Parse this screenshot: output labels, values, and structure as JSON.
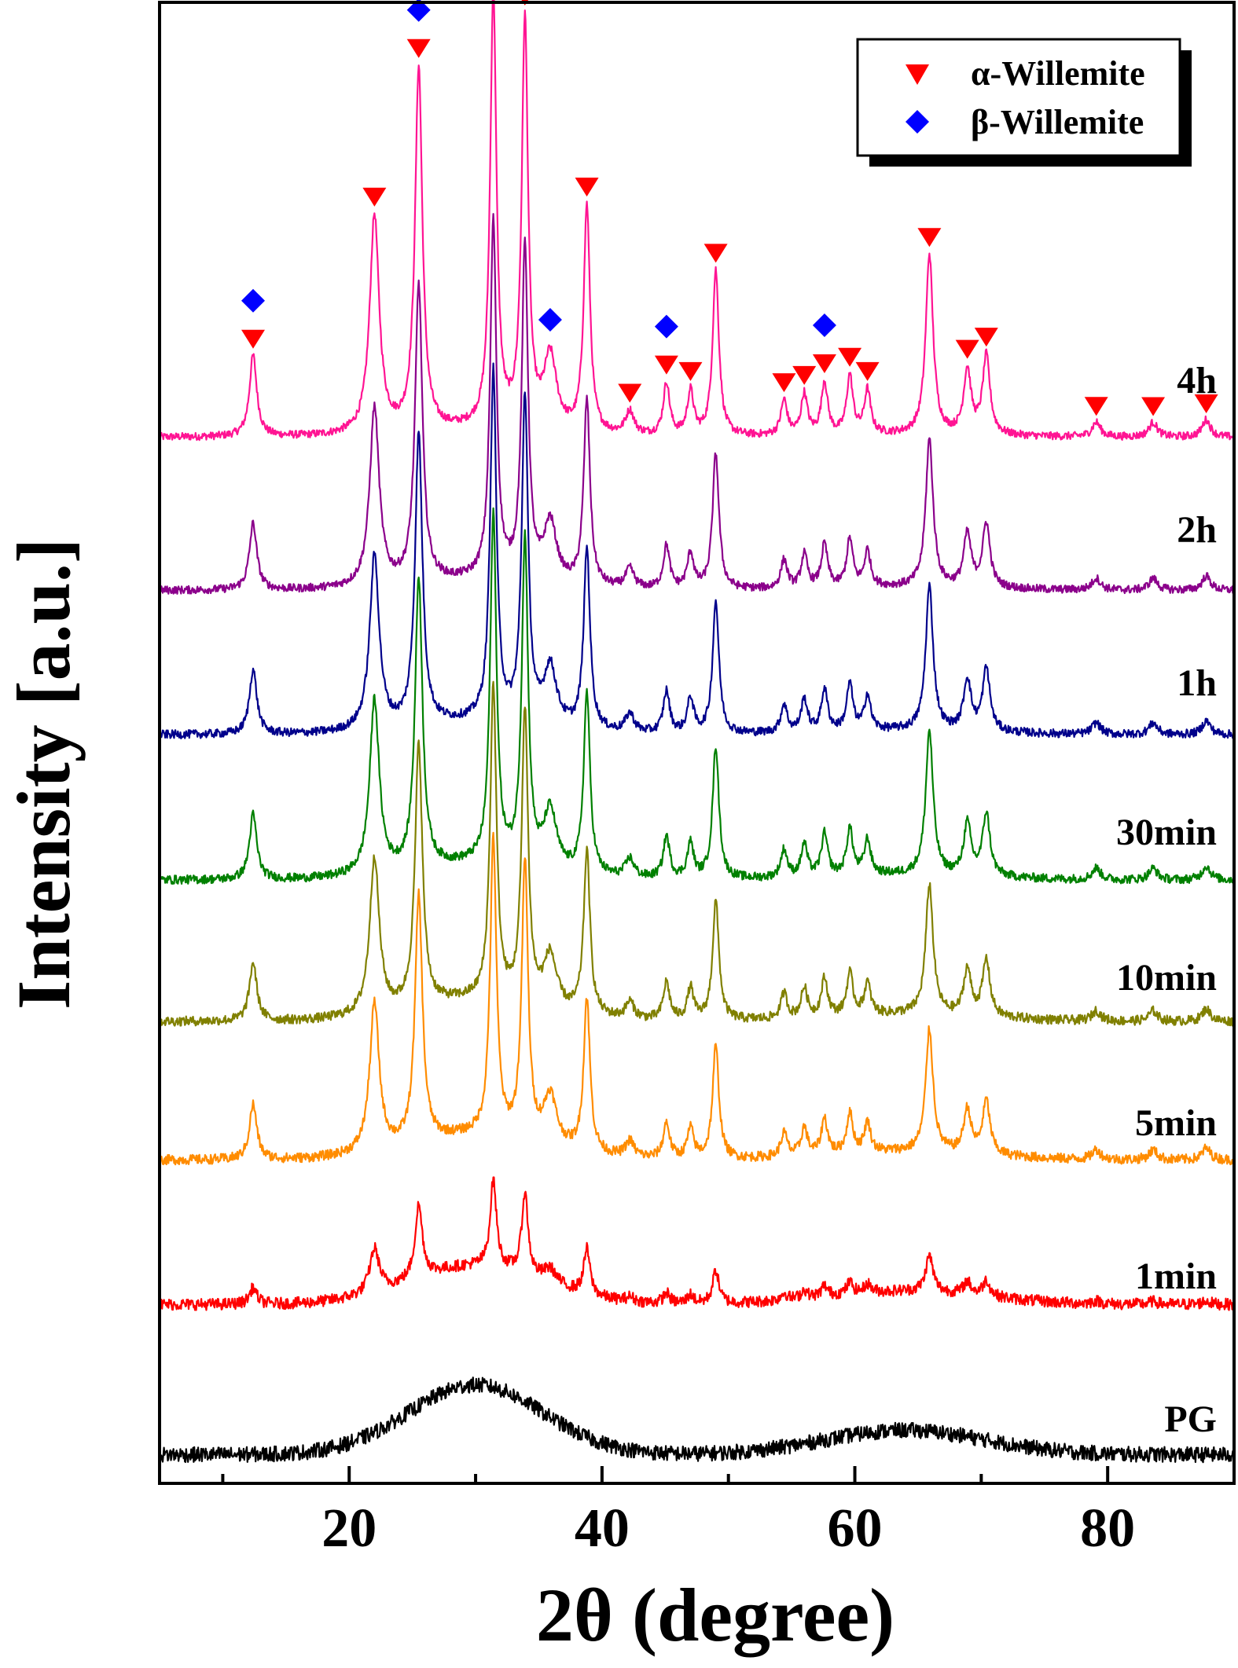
{
  "chart_data": {
    "type": "line",
    "xlabel": "2θ (degree)",
    "ylabel": "Intensity [a.u.]",
    "xlim": [
      5,
      90
    ],
    "x_ticks": [
      20,
      40,
      60,
      80
    ],
    "y_ticks": [],
    "grid": false,
    "legend_position": "top-right",
    "legend": [
      {
        "label": "α-Willemite",
        "marker": "down-triangle",
        "color": "#ff0000"
      },
      {
        "label": "β-Willemite",
        "marker": "diamond",
        "color": "#0000ff"
      }
    ],
    "series": [
      {
        "name": "4h",
        "color": "#ff1493",
        "baseline": 0.09,
        "crystallinity": 1.0,
        "amorphous": 0.02
      },
      {
        "name": "2h",
        "color": "#8b008b",
        "baseline": 0.09,
        "crystallinity": 0.82,
        "amorphous": 0.03
      },
      {
        "name": "1h",
        "color": "#00008b",
        "baseline": 0.08,
        "crystallinity": 0.8,
        "amorphous": 0.04
      },
      {
        "name": "30min",
        "color": "#008000",
        "baseline": 0.08,
        "crystallinity": 0.8,
        "amorphous": 0.05
      },
      {
        "name": "10min",
        "color": "#808000",
        "baseline": 0.08,
        "crystallinity": 0.72,
        "amorphous": 0.07
      },
      {
        "name": "5min",
        "color": "#ff8c00",
        "baseline": 0.09,
        "crystallinity": 0.68,
        "amorphous": 0.08
      },
      {
        "name": "1min",
        "color": "#ff0000",
        "baseline": 0.08,
        "crystallinity": 0.2,
        "amorphous": 0.13
      },
      {
        "name": "PG",
        "color": "#000000",
        "baseline": 0.05,
        "crystallinity": 0.0,
        "amorphous": 0.24
      }
    ],
    "peaks": [
      {
        "x": 12.4,
        "h": 0.28,
        "w": 0.35,
        "phase": "alpha+beta"
      },
      {
        "x": 22.0,
        "h": 0.75,
        "w": 0.45,
        "phase": "alpha"
      },
      {
        "x": 25.5,
        "h": 1.25,
        "w": 0.35,
        "phase": "alpha+beta"
      },
      {
        "x": 31.4,
        "h": 1.5,
        "w": 0.3,
        "phase": "alpha"
      },
      {
        "x": 33.9,
        "h": 1.4,
        "w": 0.3,
        "phase": "alpha"
      },
      {
        "x": 35.9,
        "h": 0.25,
        "w": 0.6,
        "phase": "beta"
      },
      {
        "x": 38.8,
        "h": 0.78,
        "w": 0.3,
        "phase": "alpha"
      },
      {
        "x": 42.2,
        "h": 0.08,
        "w": 0.4,
        "phase": "alpha"
      },
      {
        "x": 45.1,
        "h": 0.18,
        "w": 0.3,
        "phase": "alpha+beta"
      },
      {
        "x": 47.0,
        "h": 0.15,
        "w": 0.3,
        "phase": "alpha"
      },
      {
        "x": 49.0,
        "h": 0.57,
        "w": 0.3,
        "phase": "alpha"
      },
      {
        "x": 54.4,
        "h": 0.12,
        "w": 0.3,
        "phase": "alpha"
      },
      {
        "x": 56.0,
        "h": 0.14,
        "w": 0.3,
        "phase": "alpha"
      },
      {
        "x": 57.6,
        "h": 0.18,
        "w": 0.3,
        "phase": "alpha+beta"
      },
      {
        "x": 59.6,
        "h": 0.2,
        "w": 0.3,
        "phase": "alpha"
      },
      {
        "x": 61.0,
        "h": 0.15,
        "w": 0.3,
        "phase": "alpha"
      },
      {
        "x": 65.9,
        "h": 0.62,
        "w": 0.35,
        "phase": "alpha"
      },
      {
        "x": 68.9,
        "h": 0.22,
        "w": 0.35,
        "phase": "alpha"
      },
      {
        "x": 70.4,
        "h": 0.27,
        "w": 0.35,
        "phase": "alpha"
      },
      {
        "x": 79.1,
        "h": 0.05,
        "w": 0.4,
        "phase": "alpha"
      },
      {
        "x": 83.6,
        "h": 0.05,
        "w": 0.4,
        "phase": "alpha"
      },
      {
        "x": 87.8,
        "h": 0.06,
        "w": 0.4,
        "phase": "alpha"
      }
    ]
  }
}
